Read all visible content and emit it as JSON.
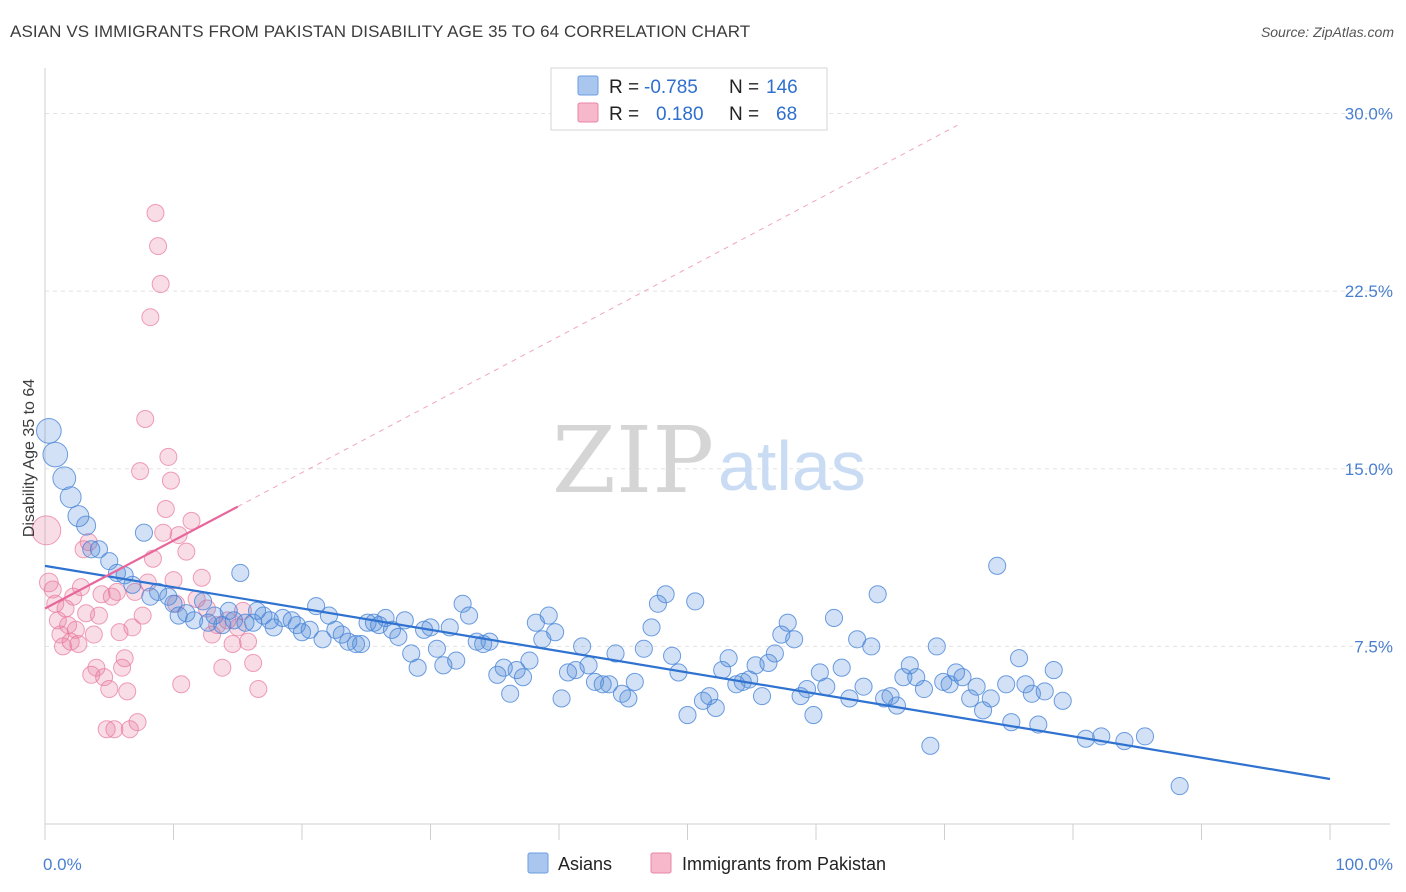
{
  "title": "ASIAN VS IMMIGRANTS FROM PAKISTAN DISABILITY AGE 35 TO 64 CORRELATION CHART",
  "source": "Source: ZipAtlas.com",
  "watermark": {
    "part1": "ZIP",
    "part2": "atlas"
  },
  "legend": {
    "r_label": "R =",
    "n_label": "N =",
    "rows": [
      {
        "r": "-0.785",
        "n": "146",
        "color": "#a9c6ef",
        "stroke": "#6b9ee0"
      },
      {
        "r": "0.180",
        "n": "68",
        "color": "#f7b8cb",
        "stroke": "#e986a6"
      }
    ]
  },
  "bottom_legend": [
    "Asians",
    "Immigrants from Pakistan"
  ],
  "chart_data": {
    "type": "scatter",
    "xlabel": "",
    "ylabel": "Disability Age 35 to 64",
    "xlim": [
      0,
      100
    ],
    "ylim": [
      0,
      31.5
    ],
    "x_tick_labels": [
      "0.0%",
      "100.0%"
    ],
    "y_ticks": [
      7.5,
      15.0,
      22.5,
      30.0
    ],
    "y_tick_labels": [
      "7.5%",
      "15.0%",
      "22.5%",
      "30.0%"
    ],
    "grid": true,
    "colors": {
      "asians": "#4a86d8",
      "pakistan": "#e8769b",
      "asians_line": "#2f72d0",
      "pakistan_line": "#e8679a"
    },
    "series": [
      {
        "name": "Asians",
        "trend": {
          "x0": 0,
          "y0": 10.9,
          "x1": 100,
          "y1": 1.9
        },
        "points": [
          [
            0.3,
            16.6,
            13
          ],
          [
            0.8,
            15.6,
            13
          ],
          [
            1.5,
            14.6,
            12
          ],
          [
            2.0,
            13.8,
            11
          ],
          [
            2.6,
            13.0,
            11
          ],
          [
            3.2,
            12.6,
            10
          ],
          [
            3.6,
            11.6,
            9
          ],
          [
            4.2,
            11.6,
            9
          ],
          [
            5.0,
            11.1,
            9
          ],
          [
            5.6,
            10.6,
            9
          ],
          [
            6.2,
            10.5,
            9
          ],
          [
            6.8,
            10.1,
            9
          ],
          [
            7.7,
            12.3,
            9
          ],
          [
            8.2,
            9.6,
            9
          ],
          [
            8.8,
            9.8,
            9
          ],
          [
            9.6,
            9.6,
            9
          ],
          [
            10.0,
            9.3,
            9
          ],
          [
            10.4,
            8.8,
            9
          ],
          [
            11.0,
            8.9,
            9
          ],
          [
            11.6,
            8.6,
            9
          ],
          [
            12.3,
            9.4,
            9
          ],
          [
            12.7,
            8.5,
            9
          ],
          [
            13.2,
            8.8,
            9
          ],
          [
            13.8,
            8.4,
            9
          ],
          [
            14.3,
            9.0,
            9
          ],
          [
            14.7,
            8.6,
            9
          ],
          [
            15.2,
            10.6,
            9
          ],
          [
            15.6,
            8.5,
            9
          ],
          [
            16.2,
            8.5,
            9
          ],
          [
            16.5,
            9.0,
            9
          ],
          [
            17.0,
            8.8,
            9
          ],
          [
            17.5,
            8.6,
            9
          ],
          [
            17.8,
            8.3,
            9
          ],
          [
            18.5,
            8.7,
            9
          ],
          [
            19.2,
            8.6,
            9
          ],
          [
            19.6,
            8.4,
            9
          ],
          [
            20.0,
            8.1,
            9
          ],
          [
            20.6,
            8.2,
            9
          ],
          [
            21.1,
            9.2,
            9
          ],
          [
            21.6,
            7.8,
            9
          ],
          [
            22.1,
            8.8,
            9
          ],
          [
            22.6,
            8.2,
            9
          ],
          [
            23.1,
            8.0,
            9
          ],
          [
            23.6,
            7.7,
            9
          ],
          [
            24.2,
            7.6,
            9
          ],
          [
            24.6,
            7.6,
            9
          ],
          [
            25.1,
            8.5,
            9
          ],
          [
            25.6,
            8.5,
            9
          ],
          [
            26.0,
            8.4,
            9
          ],
          [
            26.5,
            8.7,
            9
          ],
          [
            27.0,
            8.2,
            9
          ],
          [
            27.5,
            7.9,
            9
          ],
          [
            28.0,
            8.6,
            9
          ],
          [
            28.5,
            7.2,
            9
          ],
          [
            29.0,
            6.6,
            9
          ],
          [
            29.5,
            8.2,
            9
          ],
          [
            30.0,
            8.3,
            9
          ],
          [
            30.5,
            7.4,
            9
          ],
          [
            31.0,
            6.7,
            9
          ],
          [
            31.5,
            8.3,
            9
          ],
          [
            32.0,
            6.9,
            9
          ],
          [
            32.5,
            9.3,
            9
          ],
          [
            33.0,
            8.8,
            9
          ],
          [
            33.6,
            7.7,
            9
          ],
          [
            34.1,
            7.6,
            9
          ],
          [
            34.6,
            7.7,
            9
          ],
          [
            35.2,
            6.3,
            9
          ],
          [
            35.7,
            6.6,
            9
          ],
          [
            36.2,
            5.5,
            9
          ],
          [
            36.7,
            6.5,
            9
          ],
          [
            37.2,
            6.2,
            9
          ],
          [
            37.7,
            6.9,
            9
          ],
          [
            38.2,
            8.5,
            9
          ],
          [
            38.7,
            7.8,
            9
          ],
          [
            39.2,
            8.8,
            9
          ],
          [
            39.7,
            8.1,
            9
          ],
          [
            40.2,
            5.3,
            9
          ],
          [
            40.7,
            6.4,
            9
          ],
          [
            41.3,
            6.5,
            9
          ],
          [
            41.8,
            7.5,
            9
          ],
          [
            42.3,
            6.7,
            9
          ],
          [
            42.8,
            6.0,
            9
          ],
          [
            43.4,
            5.9,
            9
          ],
          [
            43.9,
            5.9,
            9
          ],
          [
            44.4,
            7.2,
            9
          ],
          [
            44.9,
            5.5,
            9
          ],
          [
            45.4,
            5.3,
            9
          ],
          [
            45.9,
            6.0,
            9
          ],
          [
            46.6,
            7.4,
            9
          ],
          [
            47.2,
            8.3,
            9
          ],
          [
            47.7,
            9.3,
            9
          ],
          [
            48.3,
            9.7,
            9
          ],
          [
            48.8,
            7.1,
            9
          ],
          [
            49.3,
            6.4,
            9
          ],
          [
            50.0,
            4.6,
            9
          ],
          [
            50.6,
            9.4,
            9
          ],
          [
            51.2,
            5.2,
            9
          ],
          [
            51.7,
            5.4,
            9
          ],
          [
            52.2,
            4.9,
            9
          ],
          [
            52.7,
            6.5,
            9
          ],
          [
            53.2,
            7.0,
            9
          ],
          [
            53.8,
            5.9,
            9
          ],
          [
            54.3,
            6.0,
            9
          ],
          [
            54.8,
            6.1,
            9
          ],
          [
            55.3,
            6.7,
            9
          ],
          [
            55.8,
            5.4,
            9
          ],
          [
            56.3,
            6.8,
            9
          ],
          [
            56.8,
            7.2,
            9
          ],
          [
            57.3,
            8.0,
            9
          ],
          [
            57.8,
            8.5,
            9
          ],
          [
            58.3,
            7.8,
            9
          ],
          [
            58.8,
            5.4,
            9
          ],
          [
            59.3,
            5.7,
            9
          ],
          [
            59.8,
            4.6,
            9
          ],
          [
            60.3,
            6.4,
            9
          ],
          [
            60.8,
            5.8,
            9
          ],
          [
            61.4,
            8.7,
            9
          ],
          [
            62.0,
            6.6,
            9
          ],
          [
            62.6,
            5.3,
            9
          ],
          [
            63.2,
            7.8,
            9
          ],
          [
            63.7,
            5.8,
            9
          ],
          [
            64.3,
            7.5,
            9
          ],
          [
            64.8,
            9.7,
            9
          ],
          [
            65.3,
            5.3,
            9
          ],
          [
            65.8,
            5.4,
            9
          ],
          [
            66.3,
            5.0,
            9
          ],
          [
            66.8,
            6.2,
            9
          ],
          [
            67.3,
            6.7,
            9
          ],
          [
            67.8,
            6.2,
            9
          ],
          [
            68.4,
            5.7,
            9
          ],
          [
            68.9,
            3.3,
            9
          ],
          [
            69.4,
            7.5,
            9
          ],
          [
            69.9,
            6.0,
            9
          ],
          [
            70.4,
            5.9,
            9
          ],
          [
            70.9,
            6.4,
            9
          ],
          [
            71.4,
            6.2,
            9
          ],
          [
            72.0,
            5.3,
            9
          ],
          [
            72.5,
            5.8,
            9
          ],
          [
            73.0,
            4.8,
            9
          ],
          [
            73.6,
            5.3,
            9
          ],
          [
            74.1,
            10.9,
            9
          ],
          [
            74.8,
            5.9,
            9
          ],
          [
            75.2,
            4.3,
            9
          ],
          [
            75.8,
            7.0,
            9
          ],
          [
            76.3,
            5.9,
            9
          ],
          [
            76.8,
            5.5,
            9
          ],
          [
            77.3,
            4.2,
            9
          ],
          [
            77.8,
            5.6,
            9
          ],
          [
            78.5,
            6.5,
            9
          ],
          [
            79.2,
            5.2,
            9
          ],
          [
            81.0,
            3.6,
            9
          ],
          [
            82.2,
            3.7,
            9
          ],
          [
            84.0,
            3.5,
            9
          ],
          [
            85.6,
            3.7,
            9
          ],
          [
            88.3,
            1.6,
            9
          ]
        ]
      },
      {
        "name": "Immigrants from Pakistan",
        "trend": {
          "x0": 0,
          "y0": 9.1,
          "x1": 15,
          "y1": 13.4,
          "dash_to_x": 71,
          "dash_to_y": 29.5
        },
        "points": [
          [
            0.1,
            12.4,
            17
          ],
          [
            0.3,
            10.2,
            11
          ],
          [
            0.6,
            9.9,
            10
          ],
          [
            0.8,
            9.3,
            10
          ],
          [
            1.0,
            8.6,
            10
          ],
          [
            1.2,
            8.0,
            10
          ],
          [
            1.4,
            7.5,
            10
          ],
          [
            1.6,
            9.1,
            10
          ],
          [
            1.8,
            8.4,
            10
          ],
          [
            2.0,
            7.7,
            10
          ],
          [
            2.2,
            9.6,
            10
          ],
          [
            2.4,
            8.2,
            10
          ],
          [
            2.6,
            7.6,
            10
          ],
          [
            2.8,
            10.0,
            10
          ],
          [
            3.0,
            11.6,
            10
          ],
          [
            3.2,
            8.9,
            10
          ],
          [
            3.4,
            11.9,
            10
          ],
          [
            3.6,
            6.3,
            10
          ],
          [
            3.8,
            8.0,
            10
          ],
          [
            4.0,
            6.6,
            10
          ],
          [
            4.2,
            8.8,
            10
          ],
          [
            4.4,
            9.7,
            10
          ],
          [
            4.6,
            6.2,
            10
          ],
          [
            4.8,
            4.0,
            10
          ],
          [
            5.0,
            5.7,
            10
          ],
          [
            5.2,
            9.6,
            10
          ],
          [
            5.4,
            4.0,
            10
          ],
          [
            5.6,
            9.8,
            10
          ],
          [
            5.8,
            8.1,
            10
          ],
          [
            6.0,
            6.6,
            10
          ],
          [
            6.2,
            7.0,
            10
          ],
          [
            6.4,
            5.6,
            10
          ],
          [
            6.6,
            4.0,
            10
          ],
          [
            6.8,
            8.3,
            10
          ],
          [
            7.0,
            9.8,
            10
          ],
          [
            7.2,
            4.3,
            10
          ],
          [
            7.4,
            14.9,
            10
          ],
          [
            7.6,
            8.8,
            10
          ],
          [
            7.8,
            17.1,
            10
          ],
          [
            8.0,
            10.2,
            10
          ],
          [
            8.2,
            21.4,
            10
          ],
          [
            8.4,
            11.2,
            10
          ],
          [
            8.6,
            25.8,
            10
          ],
          [
            8.8,
            24.4,
            10
          ],
          [
            9.0,
            22.8,
            10
          ],
          [
            9.2,
            12.3,
            10
          ],
          [
            9.4,
            13.3,
            10
          ],
          [
            9.6,
            15.5,
            10
          ],
          [
            9.8,
            14.5,
            10
          ],
          [
            10.0,
            10.3,
            10
          ],
          [
            10.2,
            9.3,
            10
          ],
          [
            10.4,
            12.2,
            10
          ],
          [
            10.6,
            5.9,
            10
          ],
          [
            11.0,
            11.5,
            10
          ],
          [
            11.4,
            12.8,
            10
          ],
          [
            11.8,
            9.5,
            10
          ],
          [
            12.2,
            10.4,
            10
          ],
          [
            12.6,
            9.1,
            10
          ],
          [
            13.0,
            8.0,
            10
          ],
          [
            13.4,
            8.4,
            10
          ],
          [
            13.8,
            6.6,
            10
          ],
          [
            14.2,
            8.6,
            10
          ],
          [
            14.6,
            7.6,
            10
          ],
          [
            15.0,
            8.3,
            10
          ],
          [
            15.4,
            9.0,
            10
          ],
          [
            15.8,
            7.7,
            10
          ],
          [
            16.2,
            6.8,
            10
          ],
          [
            16.6,
            5.7,
            10
          ]
        ]
      }
    ]
  }
}
